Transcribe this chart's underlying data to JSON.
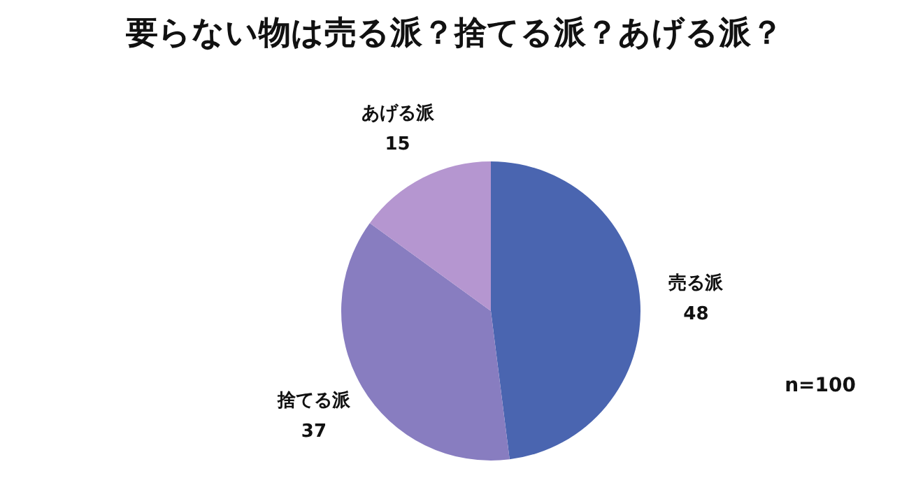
{
  "chart_data": {
    "type": "pie",
    "title": "要らない物は売る派？捨てる派？あげる派？",
    "categories": [
      "売る派",
      "捨てる派",
      "あげる派"
    ],
    "values": [
      48,
      37,
      15
    ],
    "colors": [
      "#4a65b0",
      "#887dc0",
      "#b596d0"
    ],
    "data_labels": true,
    "legend": false,
    "annotations": [
      "n=100"
    ]
  }
}
